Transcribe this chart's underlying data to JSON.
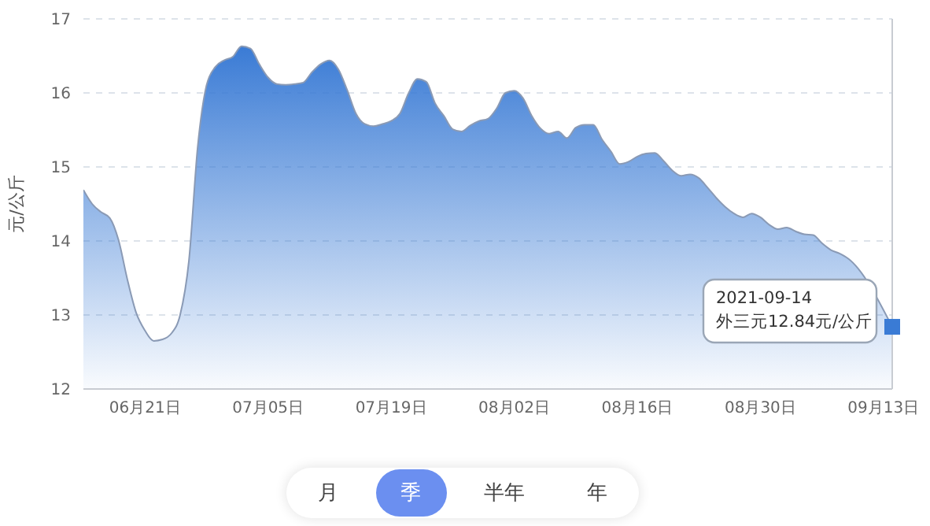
{
  "chart_data": {
    "type": "area",
    "ylabel": "元/公斤",
    "x": [
      "2021-06-14",
      "2021-06-15",
      "2021-06-16",
      "2021-06-17",
      "2021-06-18",
      "2021-06-19",
      "2021-06-20",
      "2021-06-21",
      "2021-06-22",
      "2021-06-23",
      "2021-06-24",
      "2021-06-25",
      "2021-06-26",
      "2021-06-27",
      "2021-06-28",
      "2021-06-29",
      "2021-06-30",
      "2021-07-01",
      "2021-07-02",
      "2021-07-03",
      "2021-07-04",
      "2021-07-05",
      "2021-07-06",
      "2021-07-07",
      "2021-07-08",
      "2021-07-09",
      "2021-07-10",
      "2021-07-11",
      "2021-07-12",
      "2021-07-13",
      "2021-07-14",
      "2021-07-15",
      "2021-07-16",
      "2021-07-17",
      "2021-07-18",
      "2021-07-19",
      "2021-07-20",
      "2021-07-21",
      "2021-07-22",
      "2021-07-23",
      "2021-07-24",
      "2021-07-25",
      "2021-07-26",
      "2021-07-27",
      "2021-07-28",
      "2021-07-29",
      "2021-07-30",
      "2021-07-31",
      "2021-08-01",
      "2021-08-02",
      "2021-08-03",
      "2021-08-04",
      "2021-08-05",
      "2021-08-06",
      "2021-08-07",
      "2021-08-08",
      "2021-08-09",
      "2021-08-10",
      "2021-08-11",
      "2021-08-12",
      "2021-08-13",
      "2021-08-14",
      "2021-08-15",
      "2021-08-16",
      "2021-08-17",
      "2021-08-18",
      "2021-08-19",
      "2021-08-20",
      "2021-08-21",
      "2021-08-22",
      "2021-08-23",
      "2021-08-24",
      "2021-08-25",
      "2021-08-26",
      "2021-08-27",
      "2021-08-28",
      "2021-08-29",
      "2021-08-30",
      "2021-08-31",
      "2021-09-01",
      "2021-09-02",
      "2021-09-03",
      "2021-09-04",
      "2021-09-05",
      "2021-09-06",
      "2021-09-07",
      "2021-09-08",
      "2021-09-09",
      "2021-09-10",
      "2021-09-11",
      "2021-09-12",
      "2021-09-13",
      "2021-09-14"
    ],
    "series": [
      {
        "color": "#3a7bd5",
        "values": [
          14.69,
          14.5,
          14.39,
          14.31,
          14.01,
          13.48,
          13.03,
          12.79,
          12.65,
          12.67,
          12.75,
          13.0,
          13.73,
          15.27,
          16.1,
          16.35,
          16.44,
          16.49,
          16.63,
          16.6,
          16.39,
          16.21,
          16.12,
          16.11,
          16.12,
          16.14,
          16.28,
          16.39,
          16.44,
          16.32,
          16.04,
          15.72,
          15.58,
          15.55,
          15.58,
          15.62,
          15.72,
          16.0,
          16.19,
          16.15,
          15.86,
          15.69,
          15.51,
          15.48,
          15.56,
          15.62,
          15.65,
          15.79,
          16.0,
          16.03,
          15.93,
          15.69,
          15.52,
          15.45,
          15.48,
          15.39,
          15.53,
          15.57,
          15.57,
          15.37,
          15.21,
          15.04,
          15.07,
          15.14,
          15.18,
          15.19,
          15.08,
          14.95,
          14.88,
          14.9,
          14.85,
          14.72,
          14.58,
          14.46,
          14.37,
          14.32,
          14.37,
          14.32,
          14.22,
          14.16,
          14.18,
          14.13,
          14.09,
          14.08,
          13.97,
          13.88,
          13.83,
          13.76,
          null,
          null,
          null,
          null,
          12.84
        ]
      }
    ],
    "xlim": [
      "2021-06-14",
      "2021-09-14"
    ],
    "xticks": [
      {
        "value": "2021-06-21",
        "label": "06月21日"
      },
      {
        "value": "2021-07-05",
        "label": "07月05日"
      },
      {
        "value": "2021-07-19",
        "label": "07月19日"
      },
      {
        "value": "2021-08-02",
        "label": "08月02日"
      },
      {
        "value": "2021-08-16",
        "label": "08月16日"
      },
      {
        "value": "2021-08-30",
        "label": "08月30日"
      },
      {
        "value": "2021-09-13",
        "label": "09月13日"
      }
    ],
    "ylim": [
      12,
      17
    ],
    "yticks": [
      12,
      13,
      14,
      15,
      16,
      17
    ],
    "grid": "y",
    "annotations": [
      {
        "text": "2021-09-14\n外三元12.84元/公斤",
        "x": "2021-09-14",
        "y": 12.84
      },
      "月",
      "季",
      "半年",
      "年"
    ]
  }
}
